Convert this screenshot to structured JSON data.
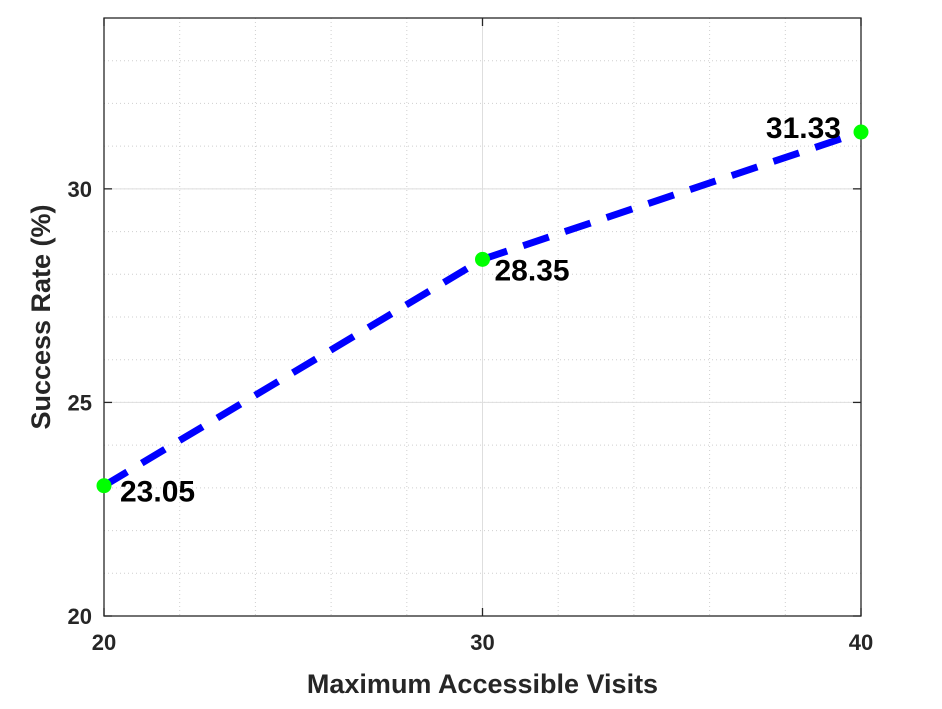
{
  "chart_data": {
    "type": "line",
    "title": "",
    "xlabel": "Maximum Accessible Visits",
    "ylabel": "Success Rate (%)",
    "xlim": [
      20,
      40
    ],
    "ylim": [
      20,
      34
    ],
    "x_ticks": [
      20,
      30,
      40
    ],
    "y_ticks": [
      20,
      25,
      30
    ],
    "grid": true,
    "minor_grid": true,
    "line_color": "#0000ff",
    "line_style": "dashed",
    "marker_color": "#00ff00",
    "series": [
      {
        "x": [
          20,
          30,
          40
        ],
        "values": [
          23.05,
          28.35,
          31.33
        ],
        "labels": [
          "23.05",
          "28.35",
          "31.33"
        ]
      }
    ]
  }
}
